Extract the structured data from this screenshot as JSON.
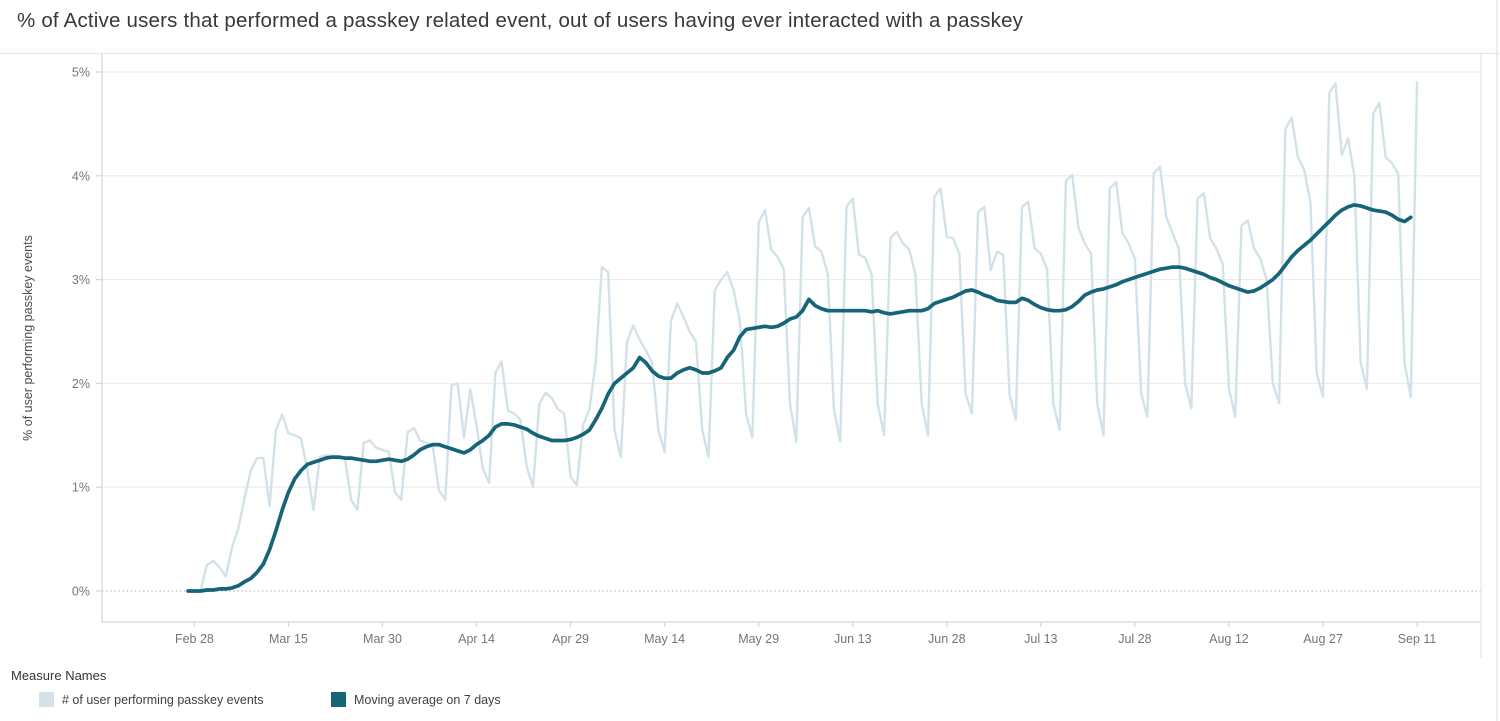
{
  "title": "% of Active users that performed a passkey related event, out of users having ever interacted with a passkey",
  "y_axis": {
    "label": "% of user performing passkey events",
    "ticks": [
      {
        "label": "0%",
        "value": 0
      },
      {
        "label": "1%",
        "value": 1
      },
      {
        "label": "2%",
        "value": 2
      },
      {
        "label": "3%",
        "value": 3
      },
      {
        "label": "4%",
        "value": 4
      },
      {
        "label": "5%",
        "value": 5
      }
    ]
  },
  "x_axis": {
    "ticks": [
      {
        "label": "Feb 28",
        "day": 0
      },
      {
        "label": "Mar 15",
        "day": 15
      },
      {
        "label": "Mar 30",
        "day": 30
      },
      {
        "label": "Apr 14",
        "day": 45
      },
      {
        "label": "Apr 29",
        "day": 60
      },
      {
        "label": "May 14",
        "day": 75
      },
      {
        "label": "May 29",
        "day": 90
      },
      {
        "label": "Jun 13",
        "day": 105
      },
      {
        "label": "Jun 28",
        "day": 120
      },
      {
        "label": "Jul 13",
        "day": 135
      },
      {
        "label": "Jul 28",
        "day": 150
      },
      {
        "label": "Aug 12",
        "day": 165
      },
      {
        "label": "Aug 27",
        "day": 180
      },
      {
        "label": "Sep 11",
        "day": 195
      }
    ]
  },
  "legend": {
    "title": "Measure Names",
    "items": [
      {
        "label": "# of user performing passkey events",
        "color": "#d2e2e8"
      },
      {
        "label": "Moving average on 7 days",
        "color": "#156478"
      }
    ]
  },
  "colors": {
    "daily_line": "#d2e2e8",
    "moving_avg_line": "#156478",
    "gridline": "#ececec",
    "zero_line": "#bcbcbc",
    "axis_line": "#d6d6d6",
    "divider": "#e7e7e7",
    "tick_label": "#767676",
    "axis_title": "#4d4d4d"
  },
  "chart_data": {
    "type": "line",
    "title": "% of Active users that performed a passkey related event, out of users having ever interacted with a passkey",
    "xlabel": "",
    "ylabel": "% of user performing passkey events",
    "ylim": [
      0,
      5
    ],
    "x_unit": "day index, 0 = Feb 28, daily points",
    "first_day": -1,
    "grid": "horizontal",
    "legend_position": "bottom-left",
    "series": [
      {
        "name": "# of user performing passkey events",
        "color": "#d2e2e8",
        "values": [
          0.0,
          0.0,
          0.01,
          0.25,
          0.29,
          0.23,
          0.14,
          0.42,
          0.6,
          0.9,
          1.16,
          1.28,
          1.28,
          0.82,
          1.55,
          1.7,
          1.52,
          1.5,
          1.47,
          1.17,
          0.78,
          1.29,
          1.31,
          1.3,
          1.29,
          1.28,
          0.88,
          0.78,
          1.43,
          1.45,
          1.38,
          1.36,
          1.34,
          0.95,
          0.88,
          1.53,
          1.57,
          1.45,
          1.43,
          1.4,
          0.97,
          0.88,
          1.98,
          2.0,
          1.48,
          1.94,
          1.6,
          1.18,
          1.04,
          2.1,
          2.21,
          1.74,
          1.71,
          1.65,
          1.2,
          1.0,
          1.8,
          1.91,
          1.86,
          1.75,
          1.71,
          1.1,
          1.02,
          1.6,
          1.75,
          2.2,
          3.12,
          3.07,
          1.55,
          1.29,
          2.4,
          2.56,
          2.42,
          2.32,
          2.2,
          1.55,
          1.34,
          2.6,
          2.77,
          2.64,
          2.5,
          2.4,
          1.55,
          1.29,
          2.9,
          3.0,
          3.07,
          2.9,
          2.6,
          1.7,
          1.48,
          3.55,
          3.67,
          3.29,
          3.22,
          3.1,
          1.8,
          1.44,
          3.6,
          3.69,
          3.32,
          3.27,
          3.06,
          1.75,
          1.44,
          3.7,
          3.78,
          3.24,
          3.21,
          3.05,
          1.8,
          1.5,
          3.4,
          3.46,
          3.35,
          3.29,
          3.05,
          1.8,
          1.5,
          3.8,
          3.88,
          3.41,
          3.4,
          3.25,
          1.9,
          1.71,
          3.65,
          3.7,
          3.09,
          3.27,
          3.24,
          1.9,
          1.65,
          3.7,
          3.75,
          3.3,
          3.25,
          3.1,
          1.8,
          1.55,
          3.95,
          4.01,
          3.5,
          3.35,
          3.25,
          1.8,
          1.5,
          3.88,
          3.94,
          3.45,
          3.35,
          3.2,
          1.9,
          1.68,
          4.02,
          4.09,
          3.6,
          3.45,
          3.3,
          2.0,
          1.76,
          3.78,
          3.83,
          3.4,
          3.3,
          3.15,
          1.95,
          1.68,
          3.52,
          3.57,
          3.3,
          3.2,
          3.0,
          2.0,
          1.81,
          4.45,
          4.56,
          4.18,
          4.06,
          3.74,
          2.1,
          1.87,
          4.8,
          4.89,
          4.2,
          4.36,
          4.0,
          2.2,
          1.95,
          4.6,
          4.7,
          4.18,
          4.12,
          4.02,
          2.2,
          1.87,
          4.9
        ]
      },
      {
        "name": "Moving average on 7 days",
        "color": "#156478",
        "values": [
          0.0,
          0.0,
          0.0,
          0.01,
          0.01,
          0.02,
          0.02,
          0.03,
          0.05,
          0.09,
          0.12,
          0.18,
          0.26,
          0.4,
          0.58,
          0.78,
          0.95,
          1.08,
          1.16,
          1.22,
          1.24,
          1.26,
          1.28,
          1.29,
          1.29,
          1.28,
          1.28,
          1.27,
          1.26,
          1.25,
          1.25,
          1.26,
          1.27,
          1.26,
          1.25,
          1.27,
          1.31,
          1.36,
          1.39,
          1.41,
          1.41,
          1.39,
          1.37,
          1.35,
          1.33,
          1.36,
          1.41,
          1.45,
          1.5,
          1.58,
          1.61,
          1.61,
          1.6,
          1.58,
          1.56,
          1.52,
          1.49,
          1.47,
          1.45,
          1.45,
          1.45,
          1.46,
          1.48,
          1.51,
          1.55,
          1.65,
          1.76,
          1.9,
          2.0,
          2.05,
          2.1,
          2.15,
          2.25,
          2.2,
          2.12,
          2.07,
          2.05,
          2.05,
          2.1,
          2.13,
          2.15,
          2.13,
          2.1,
          2.1,
          2.12,
          2.15,
          2.25,
          2.32,
          2.45,
          2.52,
          2.53,
          2.54,
          2.55,
          2.54,
          2.55,
          2.58,
          2.62,
          2.64,
          2.7,
          2.81,
          2.75,
          2.72,
          2.7,
          2.7,
          2.7,
          2.7,
          2.7,
          2.7,
          2.7,
          2.69,
          2.7,
          2.68,
          2.67,
          2.68,
          2.69,
          2.7,
          2.7,
          2.7,
          2.72,
          2.77,
          2.79,
          2.81,
          2.83,
          2.86,
          2.89,
          2.9,
          2.88,
          2.85,
          2.83,
          2.8,
          2.79,
          2.78,
          2.78,
          2.82,
          2.8,
          2.76,
          2.73,
          2.71,
          2.7,
          2.7,
          2.71,
          2.74,
          2.79,
          2.85,
          2.88,
          2.9,
          2.91,
          2.93,
          2.95,
          2.98,
          3.0,
          3.02,
          3.04,
          3.06,
          3.08,
          3.1,
          3.11,
          3.12,
          3.12,
          3.11,
          3.09,
          3.07,
          3.05,
          3.02,
          3.0,
          2.97,
          2.94,
          2.92,
          2.9,
          2.88,
          2.89,
          2.92,
          2.96,
          3.0,
          3.06,
          3.14,
          3.22,
          3.28,
          3.33,
          3.38,
          3.44,
          3.5,
          3.56,
          3.62,
          3.67,
          3.7,
          3.72,
          3.71,
          3.69,
          3.67,
          3.66,
          3.65,
          3.62,
          3.58,
          3.56,
          3.6
        ]
      }
    ]
  }
}
